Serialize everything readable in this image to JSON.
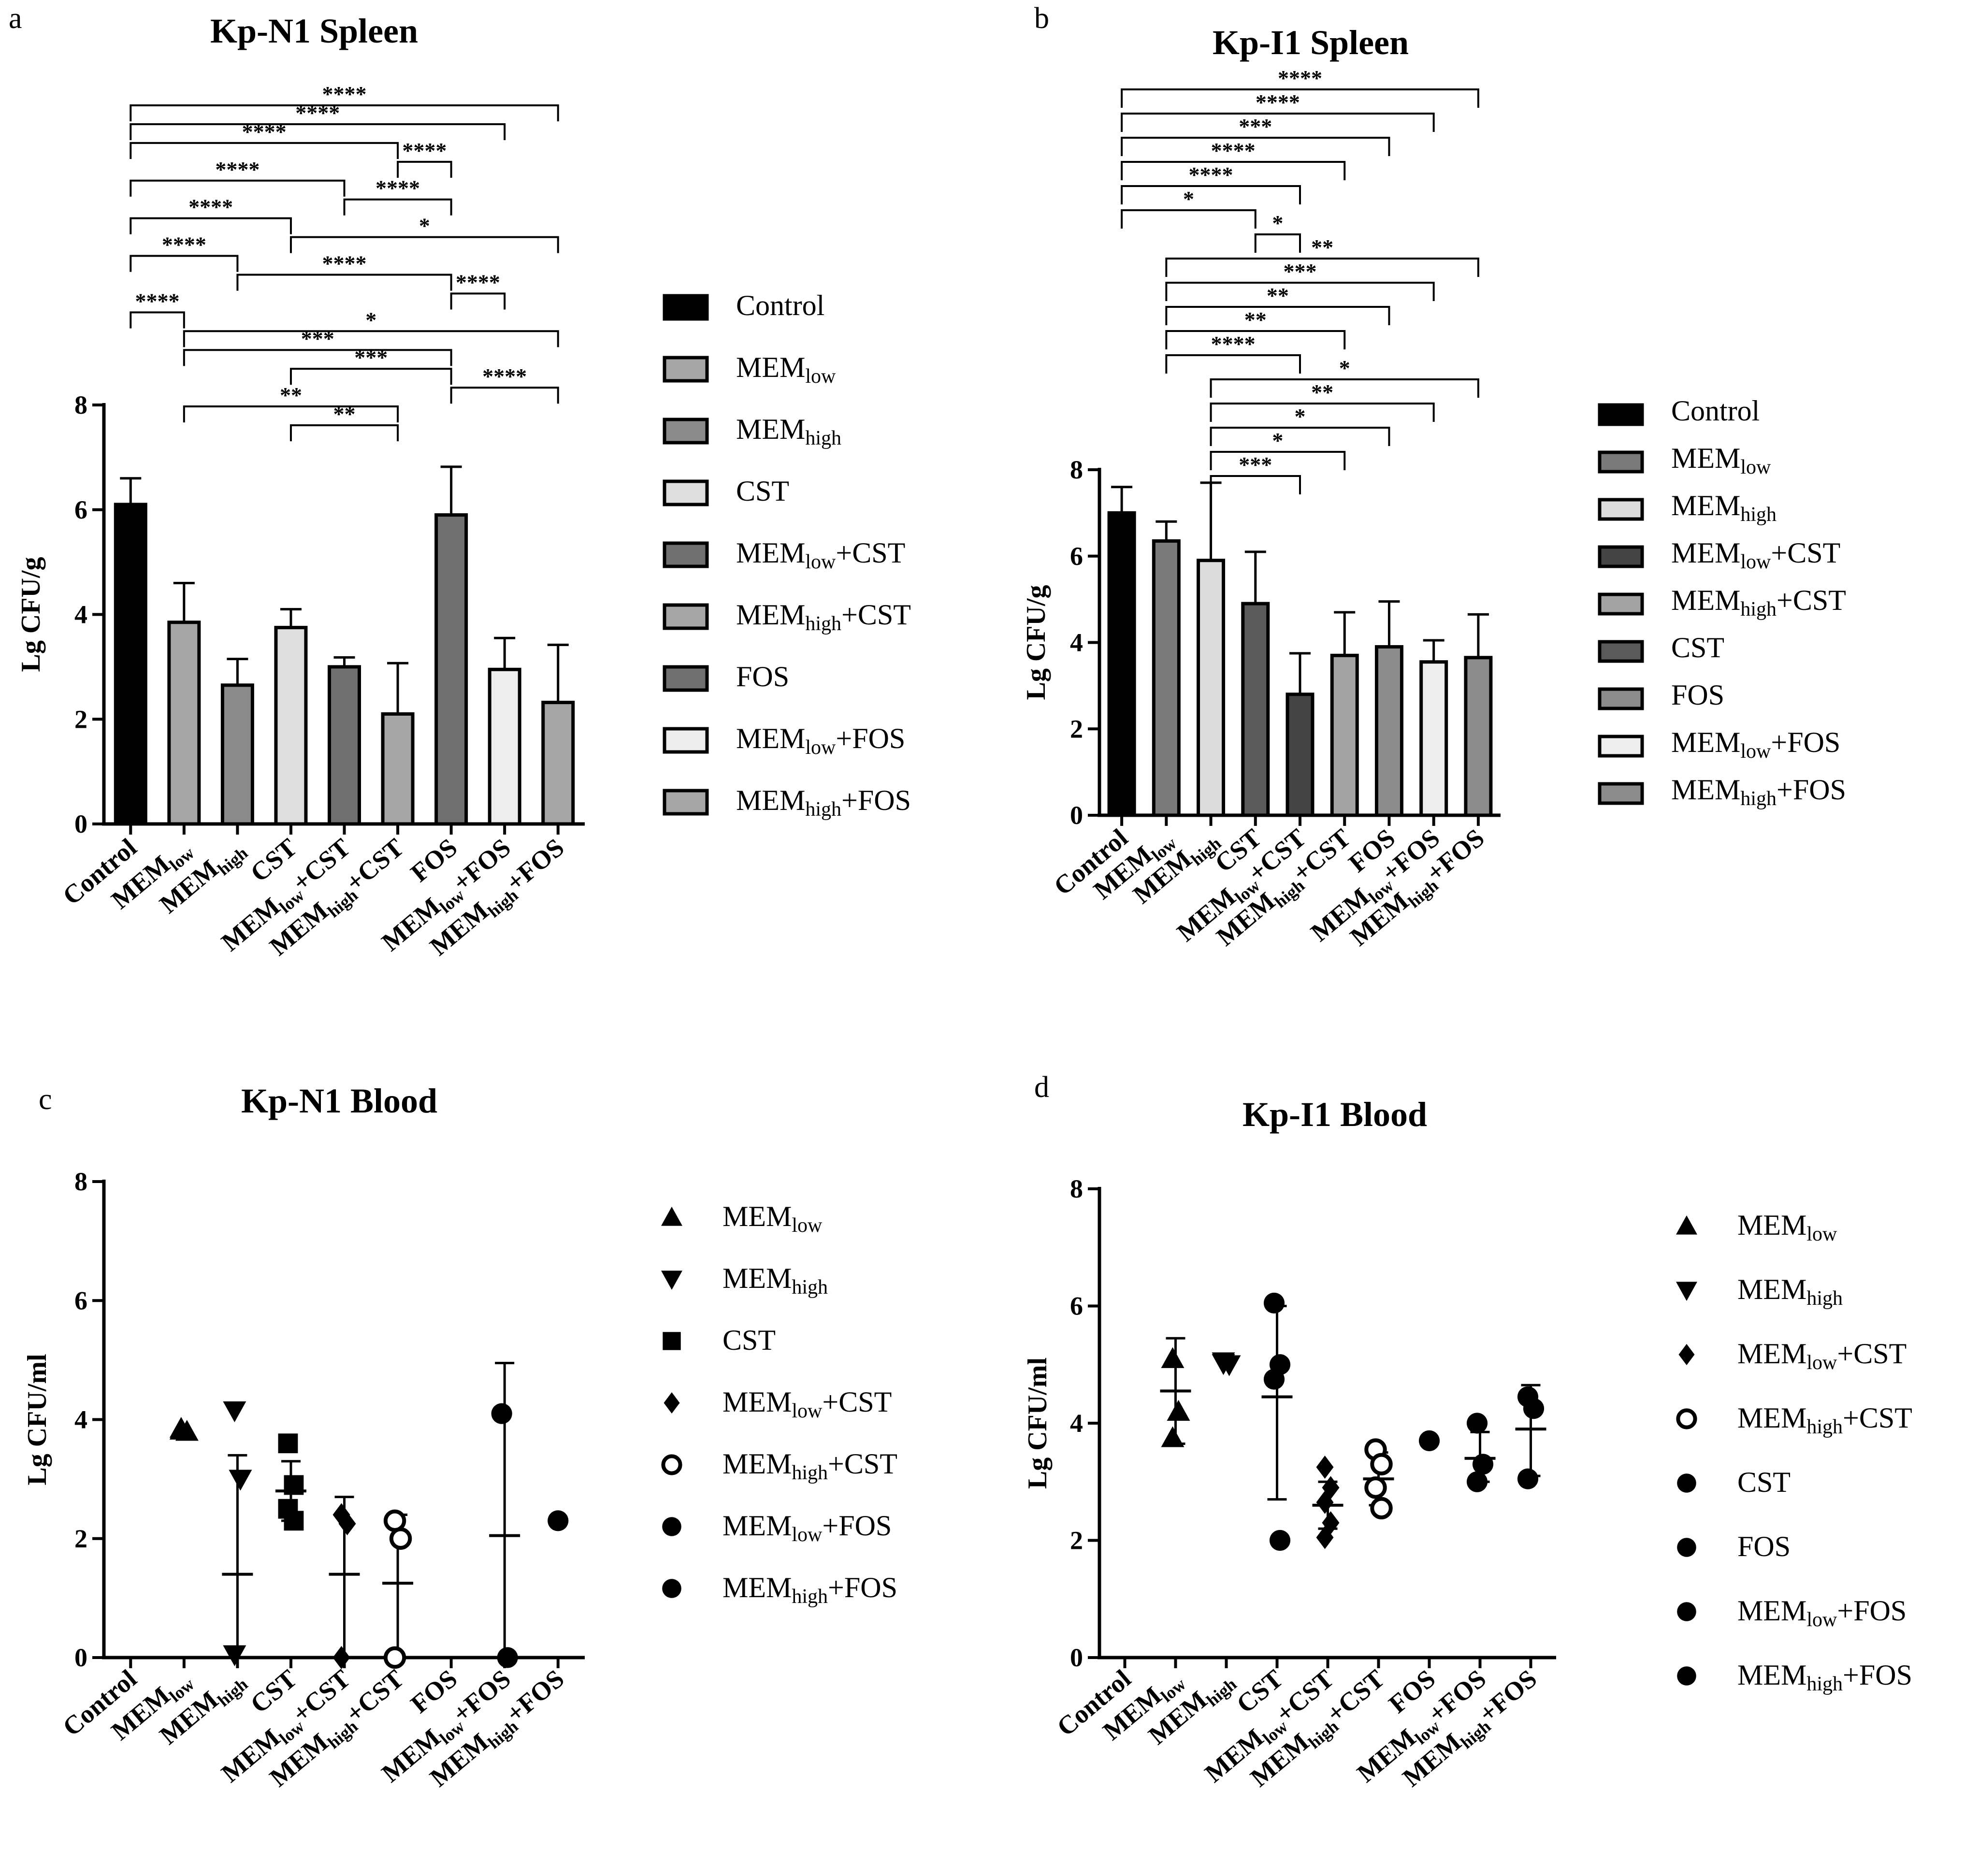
{
  "chart_data": [
    {
      "panel": "a",
      "type": "bar",
      "title": "Kp-N1 Spleen",
      "ylabel": "Lg CFU/g",
      "ylim": [
        0,
        8
      ],
      "yticks": [
        0,
        2,
        4,
        6,
        8
      ],
      "categories": [
        {
          "base": "Control",
          "sub": "",
          "tail": ""
        },
        {
          "base": "MEM",
          "sub": "low",
          "tail": ""
        },
        {
          "base": "MEM",
          "sub": "high",
          "tail": ""
        },
        {
          "base": "CST",
          "sub": "",
          "tail": ""
        },
        {
          "base": "MEM",
          "sub": "low",
          "tail": "+CST"
        },
        {
          "base": "MEM",
          "sub": "high",
          "tail": "+CST"
        },
        {
          "base": "FOS",
          "sub": "",
          "tail": ""
        },
        {
          "base": "MEM",
          "sub": "low",
          "tail": "+FOS"
        },
        {
          "base": "MEM",
          "sub": "high",
          "tail": "+FOS"
        }
      ],
      "values": [
        6.1,
        3.85,
        2.65,
        3.75,
        3.0,
        2.1,
        5.9,
        2.95,
        2.32
      ],
      "errors": [
        0.5,
        0.75,
        0.5,
        0.35,
        0.18,
        0.97,
        0.92,
        0.6,
        1.1
      ],
      "bar_fills": [
        "#000000",
        "#a6a6a6",
        "#8a8a8a",
        "#dedede",
        "#6f6f6f",
        "#a6a6a6",
        "#6f6f6f",
        "#ededed",
        "#a6a6a6"
      ],
      "legend": [
        {
          "base": "Control",
          "sub": "",
          "tail": ""
        },
        {
          "base": "MEM",
          "sub": "low",
          "tail": ""
        },
        {
          "base": "MEM",
          "sub": "high",
          "tail": ""
        },
        {
          "base": "CST",
          "sub": "",
          "tail": ""
        },
        {
          "base": "MEM",
          "sub": "low",
          "tail": "+CST"
        },
        {
          "base": "MEM",
          "sub": "high",
          "tail": "+CST"
        },
        {
          "base": "FOS",
          "sub": "",
          "tail": ""
        },
        {
          "base": "MEM",
          "sub": "low",
          "tail": "+FOS"
        },
        {
          "base": "MEM",
          "sub": "high",
          "tail": "+FOS"
        }
      ],
      "comparisons": [
        {
          "a": 0,
          "b": 8,
          "label": "****"
        },
        {
          "a": 0,
          "b": 7,
          "label": "****"
        },
        {
          "a": 0,
          "b": 5,
          "label": "****"
        },
        {
          "a": 5,
          "b": 6,
          "label": "****"
        },
        {
          "a": 0,
          "b": 4,
          "label": "****"
        },
        {
          "a": 4,
          "b": 6,
          "label": "****"
        },
        {
          "a": 0,
          "b": 3,
          "label": "****"
        },
        {
          "a": 3,
          "b": 8,
          "label": "*"
        },
        {
          "a": 0,
          "b": 2,
          "label": "****"
        },
        {
          "a": 2,
          "b": 6,
          "label": "****"
        },
        {
          "a": 6,
          "b": 7,
          "label": "****"
        },
        {
          "a": 0,
          "b": 1,
          "label": "****"
        },
        {
          "a": 1,
          "b": 8,
          "label": "*"
        },
        {
          "a": 1,
          "b": 6,
          "label": "***"
        },
        {
          "a": 3,
          "b": 6,
          "label": "***"
        },
        {
          "a": 6,
          "b": 8,
          "label": "****"
        },
        {
          "a": 1,
          "b": 5,
          "label": "**"
        },
        {
          "a": 3,
          "b": 5,
          "label": "**"
        }
      ]
    },
    {
      "panel": "b",
      "type": "bar",
      "title": "Kp-I1 Spleen",
      "ylabel": "Lg CFU/g",
      "ylim": [
        0,
        8
      ],
      "yticks": [
        0,
        2,
        4,
        6,
        8
      ],
      "categories": [
        {
          "base": "Control",
          "sub": "",
          "tail": ""
        },
        {
          "base": "MEM",
          "sub": "low",
          "tail": ""
        },
        {
          "base": "MEM",
          "sub": "high",
          "tail": ""
        },
        {
          "base": "CST",
          "sub": "",
          "tail": ""
        },
        {
          "base": "MEM",
          "sub": "low",
          "tail": "+CST"
        },
        {
          "base": "MEM",
          "sub": "high",
          "tail": "+CST"
        },
        {
          "base": "FOS",
          "sub": "",
          "tail": ""
        },
        {
          "base": "MEM",
          "sub": "low",
          "tail": "+FOS"
        },
        {
          "base": "MEM",
          "sub": "high",
          "tail": "+FOS"
        }
      ],
      "values": [
        7.0,
        6.35,
        5.9,
        4.9,
        2.8,
        3.7,
        3.9,
        3.55,
        3.65
      ],
      "errors": [
        0.6,
        0.45,
        1.8,
        1.2,
        0.95,
        1.0,
        1.05,
        0.5,
        1.0
      ],
      "bar_fills": [
        "#000000",
        "#7a7a7a",
        "#dcdcdc",
        "#5a5a5a",
        "#444444",
        "#a3a3a3",
        "#8c8c8c",
        "#ededed",
        "#8c8c8c"
      ],
      "legend": [
        {
          "base": "Control",
          "sub": "",
          "tail": ""
        },
        {
          "base": "MEM",
          "sub": "low",
          "tail": ""
        },
        {
          "base": "MEM",
          "sub": "high",
          "tail": ""
        },
        {
          "base": "MEM",
          "sub": "low",
          "tail": "+CST"
        },
        {
          "base": "MEM",
          "sub": "high",
          "tail": "+CST"
        },
        {
          "base": "CST",
          "sub": "",
          "tail": ""
        },
        {
          "base": "FOS",
          "sub": "",
          "tail": ""
        },
        {
          "base": "MEM",
          "sub": "low",
          "tail": "+FOS"
        },
        {
          "base": "MEM",
          "sub": "high",
          "tail": "+FOS"
        }
      ],
      "legend_fills": [
        "#000000",
        "#7a7a7a",
        "#dcdcdc",
        "#444444",
        "#a3a3a3",
        "#5a5a5a",
        "#8c8c8c",
        "#ededed",
        "#8c8c8c"
      ],
      "comparisons": [
        {
          "a": 0,
          "b": 8,
          "label": "****"
        },
        {
          "a": 0,
          "b": 7,
          "label": "****"
        },
        {
          "a": 0,
          "b": 6,
          "label": "***"
        },
        {
          "a": 0,
          "b": 5,
          "label": "****"
        },
        {
          "a": 0,
          "b": 4,
          "label": "****"
        },
        {
          "a": 0,
          "b": 3,
          "label": "*"
        },
        {
          "a": 3,
          "b": 4,
          "label": "*"
        },
        {
          "a": 1,
          "b": 8,
          "label": "**"
        },
        {
          "a": 1,
          "b": 7,
          "label": "***"
        },
        {
          "a": 1,
          "b": 6,
          "label": "**"
        },
        {
          "a": 1,
          "b": 5,
          "label": "**"
        },
        {
          "a": 1,
          "b": 4,
          "label": "****"
        },
        {
          "a": 2,
          "b": 8,
          "label": "*"
        },
        {
          "a": 2,
          "b": 7,
          "label": "**"
        },
        {
          "a": 2,
          "b": 6,
          "label": "*"
        },
        {
          "a": 2,
          "b": 5,
          "label": "*"
        },
        {
          "a": 2,
          "b": 4,
          "label": "***"
        }
      ]
    },
    {
      "panel": "c",
      "type": "scatter",
      "title": "Kp-N1 Blood",
      "ylabel": "Lg CFU/ml",
      "ylim": [
        0,
        8
      ],
      "yticks": [
        0,
        2,
        4,
        6,
        8
      ],
      "categories": [
        {
          "base": "Control",
          "sub": "",
          "tail": ""
        },
        {
          "base": "MEM",
          "sub": "low",
          "tail": ""
        },
        {
          "base": "MEM",
          "sub": "high",
          "tail": ""
        },
        {
          "base": "CST",
          "sub": "",
          "tail": ""
        },
        {
          "base": "MEM",
          "sub": "low",
          "tail": "+CST"
        },
        {
          "base": "MEM",
          "sub": "high",
          "tail": "+CST"
        },
        {
          "base": "FOS",
          "sub": "",
          "tail": ""
        },
        {
          "base": "MEM",
          "sub": "low",
          "tail": "+FOS"
        },
        {
          "base": "MEM",
          "sub": "high",
          "tail": "+FOS"
        }
      ],
      "groups": [
        {
          "cat": 1,
          "marker": "triangle",
          "points": [
            3.85,
            3.8,
            3.82
          ],
          "mean": null,
          "lo": null,
          "hi": null
        },
        {
          "cat": 2,
          "marker": "triangle-down",
          "points": [
            4.15,
            3.0,
            0.05
          ],
          "mean": 1.4,
          "lo": 0.0,
          "hi": 3.4
        },
        {
          "cat": 3,
          "marker": "square",
          "points": [
            3.6,
            2.9,
            2.5,
            2.3
          ],
          "mean": 2.8,
          "lo": 2.3,
          "hi": 3.3
        },
        {
          "cat": 4,
          "marker": "diamond",
          "points": [
            2.4,
            2.25,
            0.0
          ],
          "mean": 1.4,
          "lo": 0.0,
          "hi": 2.7
        },
        {
          "cat": 5,
          "marker": "circle-open",
          "points": [
            2.3,
            2.0,
            0.0
          ],
          "mean": 1.25,
          "lo": 0.0,
          "hi": 2.4
        },
        {
          "cat": 7,
          "marker": "circle",
          "points": [
            4.1,
            0.0
          ],
          "mean": 2.05,
          "lo": 0.0,
          "hi": 4.95
        },
        {
          "cat": 8,
          "marker": "circle",
          "points": [
            2.3
          ],
          "mean": null,
          "lo": null,
          "hi": null
        }
      ],
      "legend": [
        {
          "base": "MEM",
          "sub": "low",
          "tail": "",
          "marker": "triangle"
        },
        {
          "base": "MEM",
          "sub": "high",
          "tail": "",
          "marker": "triangle-down"
        },
        {
          "base": "CST",
          "sub": "",
          "tail": "",
          "marker": "square"
        },
        {
          "base": "MEM",
          "sub": "low",
          "tail": "+CST",
          "marker": "diamond"
        },
        {
          "base": "MEM",
          "sub": "high",
          "tail": "+CST",
          "marker": "circle-open"
        },
        {
          "base": "MEM",
          "sub": "low",
          "tail": "+FOS",
          "marker": "circle"
        },
        {
          "base": "MEM",
          "sub": "high",
          "tail": "+FOS",
          "marker": "circle"
        }
      ]
    },
    {
      "panel": "d",
      "type": "scatter",
      "title": "Kp-I1 Blood",
      "ylabel": "Lg CFU/ml",
      "ylim": [
        0,
        8
      ],
      "yticks": [
        0,
        2,
        4,
        6,
        8
      ],
      "categories": [
        {
          "base": "Control",
          "sub": "",
          "tail": ""
        },
        {
          "base": "MEM",
          "sub": "low",
          "tail": ""
        },
        {
          "base": "MEM",
          "sub": "high",
          "tail": ""
        },
        {
          "base": "CST",
          "sub": "",
          "tail": ""
        },
        {
          "base": "MEM",
          "sub": "low",
          "tail": "+CST"
        },
        {
          "base": "MEM",
          "sub": "high",
          "tail": "+CST"
        },
        {
          "base": "FOS",
          "sub": "",
          "tail": ""
        },
        {
          "base": "MEM",
          "sub": "low",
          "tail": "+FOS"
        },
        {
          "base": "MEM",
          "sub": "high",
          "tail": "+FOS"
        }
      ],
      "groups": [
        {
          "cat": 1,
          "marker": "triangle",
          "points": [
            5.1,
            4.2,
            3.75
          ],
          "mean": 4.55,
          "lo": 3.65,
          "hi": 5.45
        },
        {
          "cat": 2,
          "marker": "triangle-down",
          "points": [
            5.05,
            5.0,
            5.02
          ],
          "mean": null,
          "lo": null,
          "hi": null
        },
        {
          "cat": 3,
          "marker": "circle",
          "points": [
            6.05,
            5.0,
            4.75,
            2.0
          ],
          "mean": 4.45,
          "lo": 2.7,
          "hi": 6.0
        },
        {
          "cat": 4,
          "marker": "diamond",
          "points": [
            3.25,
            2.9,
            2.65,
            2.3,
            2.05
          ],
          "mean": 2.6,
          "lo": 2.2,
          "hi": 3.0
        },
        {
          "cat": 5,
          "marker": "circle-open",
          "points": [
            3.55,
            3.3,
            2.9,
            2.55
          ],
          "mean": 3.05,
          "lo": 2.6,
          "hi": 3.5
        },
        {
          "cat": 6,
          "marker": "circle",
          "points": [
            3.7
          ],
          "mean": null,
          "lo": null,
          "hi": null
        },
        {
          "cat": 7,
          "marker": "circle",
          "points": [
            4.0,
            3.3,
            3.0
          ],
          "mean": 3.4,
          "lo": 3.0,
          "hi": 3.85
        },
        {
          "cat": 8,
          "marker": "circle",
          "points": [
            4.45,
            4.25,
            3.05
          ],
          "mean": 3.9,
          "lo": 3.1,
          "hi": 4.65
        }
      ],
      "legend": [
        {
          "base": "MEM",
          "sub": "low",
          "tail": "",
          "marker": "triangle"
        },
        {
          "base": "MEM",
          "sub": "high",
          "tail": "",
          "marker": "triangle-down"
        },
        {
          "base": "MEM",
          "sub": "low",
          "tail": "+CST",
          "marker": "diamond"
        },
        {
          "base": "MEM",
          "sub": "high",
          "tail": "+CST",
          "marker": "circle-open"
        },
        {
          "base": "CST",
          "sub": "",
          "tail": "",
          "marker": "circle"
        },
        {
          "base": "FOS",
          "sub": "",
          "tail": "",
          "marker": "circle"
        },
        {
          "base": "MEM",
          "sub": "low",
          "tail": "+FOS",
          "marker": "circle"
        },
        {
          "base": "MEM",
          "sub": "high",
          "tail": "+FOS",
          "marker": "circle"
        }
      ]
    }
  ]
}
